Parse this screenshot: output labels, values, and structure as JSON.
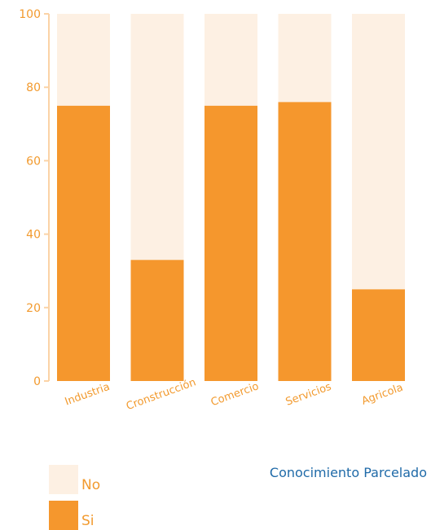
{
  "chart_data": {
    "type": "bar",
    "stacked": true,
    "categories": [
      "Industria",
      "Cronstrucción",
      "Comercio",
      "Servicios",
      "Agricola"
    ],
    "series": [
      {
        "name": "Si",
        "values": [
          75,
          33,
          75,
          76,
          25
        ],
        "color": "#f5972d"
      },
      {
        "name": "No",
        "values": [
          25,
          67,
          25,
          24,
          75
        ],
        "color": "#fdf0e3"
      }
    ],
    "ylim": [
      0,
      100
    ],
    "yticks": [
      0,
      20,
      40,
      60,
      80,
      100
    ],
    "grid": false,
    "legend_position": "bottom-left",
    "axis_color": "#fbd3a6",
    "label_color": "#f29a2e"
  },
  "legend": [
    {
      "label": "No",
      "color": "#fdf0e3"
    },
    {
      "label": "Si",
      "color": "#f5972d"
    }
  ],
  "subtitle": "Conocimiento Parcelado"
}
